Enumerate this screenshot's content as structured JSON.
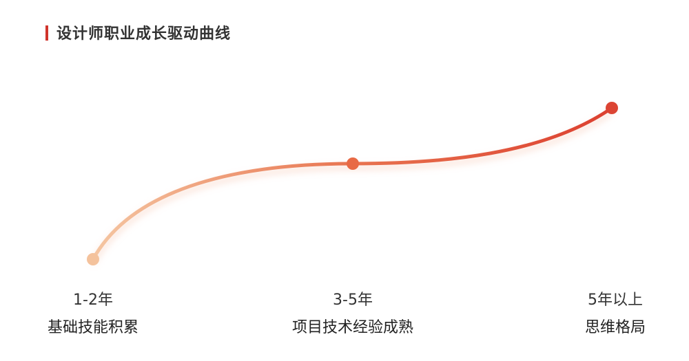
{
  "title": "设计师职业成长驱动曲线",
  "colors": {
    "accent": "#d0342c",
    "curve_start": "#f5c6a2",
    "curve_mid": "#e87450",
    "curve_end": "#dc4030"
  },
  "stages": [
    {
      "period": "1-2年",
      "description": "基础技能积累",
      "color": "#f4c29c"
    },
    {
      "period": "3-5年",
      "description": "项目技术经验成熟",
      "color": "#e86a45"
    },
    {
      "period": "5年以上",
      "description": "思维格局",
      "color": "#dc4433"
    }
  ]
}
